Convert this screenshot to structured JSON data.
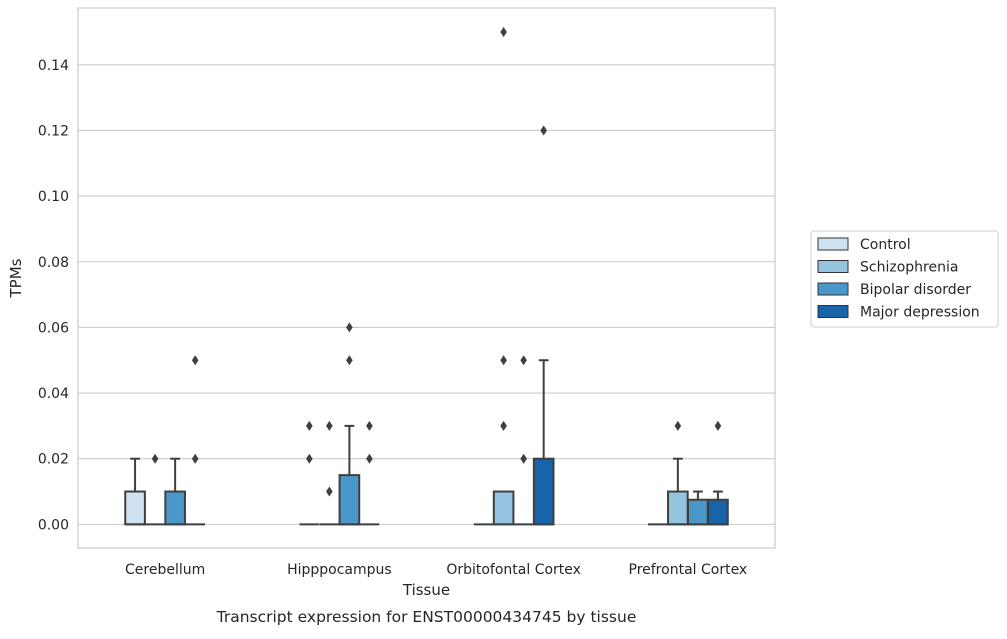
{
  "chart_data": {
    "type": "box",
    "xlabel": "Tissue",
    "ylabel": "TPMs",
    "caption": "Transcript expression for ENST00000434745 by tissue",
    "categories": [
      "Cerebellum",
      "Hipppocampus",
      "Orbitofontal Cortex",
      "Prefrontal Cortex"
    ],
    "ylim": [
      -0.0072,
      0.1573
    ],
    "yticks": [
      0.0,
      0.02,
      0.04,
      0.06,
      0.08,
      0.1,
      0.12,
      0.14
    ],
    "ytick_labels": [
      "0.00",
      "0.02",
      "0.04",
      "0.06",
      "0.08",
      "0.10",
      "0.12",
      "0.14"
    ],
    "grid": "horizontal",
    "legend_position": "right",
    "series": [
      {
        "name": "Control",
        "color": "#d0e1f2",
        "boxes": [
          {
            "q1": 0.0,
            "median": 0.0,
            "q3": 0.01,
            "whislo": 0.0,
            "whishi": 0.02,
            "fliers": []
          },
          {
            "q1": 0.0,
            "median": 0.0,
            "q3": 0.0,
            "whislo": 0.0,
            "whishi": 0.0,
            "fliers": [
              0.02,
              0.03
            ]
          },
          {
            "q1": 0.0,
            "median": 0.0,
            "q3": 0.0,
            "whislo": 0.0,
            "whishi": 0.0,
            "fliers": []
          },
          {
            "q1": 0.0,
            "median": 0.0,
            "q3": 0.0,
            "whislo": 0.0,
            "whishi": 0.0,
            "fliers": []
          }
        ]
      },
      {
        "name": "Schizophrenia",
        "color": "#94c4df",
        "boxes": [
          {
            "q1": 0.0,
            "median": 0.0,
            "q3": 0.0,
            "whislo": 0.0,
            "whishi": 0.0,
            "fliers": [
              0.02
            ]
          },
          {
            "q1": 0.0,
            "median": 0.0,
            "q3": 0.0,
            "whislo": 0.0,
            "whishi": 0.0,
            "fliers": [
              0.01,
              0.03
            ]
          },
          {
            "q1": 0.0,
            "median": 0.0,
            "q3": 0.01,
            "whislo": 0.0,
            "whishi": 0.01,
            "fliers": [
              0.03,
              0.05,
              0.15
            ]
          },
          {
            "q1": 0.0,
            "median": 0.0,
            "q3": 0.01,
            "whislo": 0.0,
            "whishi": 0.02,
            "fliers": [
              0.03
            ]
          }
        ]
      },
      {
        "name": "Bipolar disorder",
        "color": "#4a98c9",
        "boxes": [
          {
            "q1": 0.0,
            "median": 0.0,
            "q3": 0.01,
            "whislo": 0.0,
            "whishi": 0.02,
            "fliers": []
          },
          {
            "q1": 0.0,
            "median": 0.0,
            "q3": 0.015,
            "whislo": 0.0,
            "whishi": 0.03,
            "fliers": [
              0.05,
              0.06
            ]
          },
          {
            "q1": 0.0,
            "median": 0.0,
            "q3": 0.0,
            "whislo": 0.0,
            "whishi": 0.0,
            "fliers": [
              0.02,
              0.05
            ]
          },
          {
            "q1": 0.0,
            "median": 0.0,
            "q3": 0.0075,
            "whislo": 0.0,
            "whishi": 0.01,
            "fliers": []
          }
        ]
      },
      {
        "name": "Major depression",
        "color": "#1764ab",
        "boxes": [
          {
            "q1": 0.0,
            "median": 0.0,
            "q3": 0.0,
            "whislo": 0.0,
            "whishi": 0.0,
            "fliers": [
              0.02,
              0.05
            ]
          },
          {
            "q1": 0.0,
            "median": 0.0,
            "q3": 0.0,
            "whislo": 0.0,
            "whishi": 0.0,
            "fliers": [
              0.02,
              0.03
            ]
          },
          {
            "q1": 0.0,
            "median": 0.0,
            "q3": 0.02,
            "whislo": 0.0,
            "whishi": 0.05,
            "fliers": [
              0.12
            ]
          },
          {
            "q1": 0.0,
            "median": 0.0,
            "q3": 0.0075,
            "whislo": 0.0,
            "whishi": 0.01,
            "fliers": [
              0.03
            ]
          }
        ]
      }
    ]
  }
}
